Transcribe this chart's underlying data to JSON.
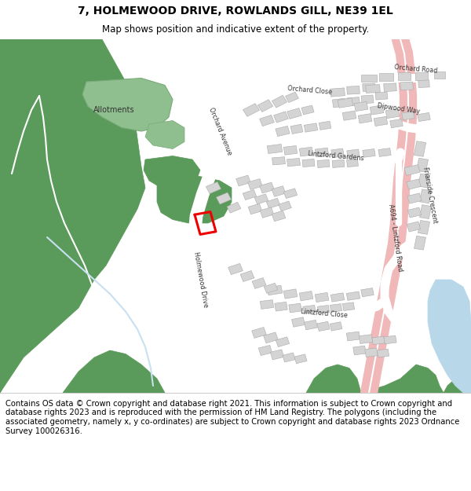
{
  "title_line1": "7, HOLMEWOOD DRIVE, ROWLANDS GILL, NE39 1EL",
  "title_line2": "Map shows position and indicative extent of the property.",
  "footer_text": "Contains OS data © Crown copyright and database right 2021. This information is subject to Crown copyright and database rights 2023 and is reproduced with the permission of HM Land Registry. The polygons (including the associated geometry, namely x, y co-ordinates) are subject to Crown copyright and database rights 2023 Ordnance Survey 100026316.",
  "map_bg": "#f2f2f2",
  "green": "#5a9a5a",
  "light_green": "#8fbe8f",
  "white_road": "#ffffff",
  "pink_road": "#f0b8b8",
  "building": "#d4d4d4",
  "building_ec": "#aaaaaa",
  "water": "#b8d8ea",
  "red_plot": "#ee0000",
  "title_fs": 10,
  "sub_fs": 8.5,
  "footer_fs": 7.2,
  "label_fs": 5.8,
  "small_label_fs": 5.2
}
